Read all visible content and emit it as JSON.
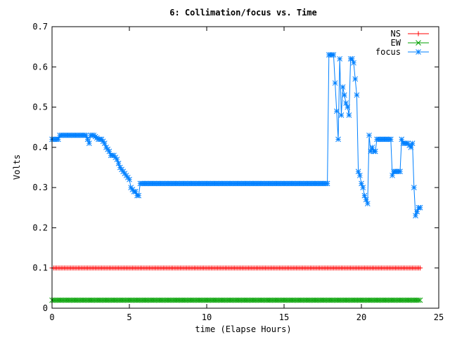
{
  "chart_data": {
    "type": "line",
    "title": "6: Collimation/focus vs. Time",
    "xlabel": "time (Elapse Hours)",
    "ylabel": "Volts",
    "xlim": [
      0,
      25
    ],
    "ylim": [
      0,
      0.7
    ],
    "xticks": [
      0,
      5,
      10,
      15,
      20,
      25
    ],
    "yticks": [
      0,
      0.1,
      0.2,
      0.3,
      0.4,
      0.5,
      0.6,
      0.7
    ],
    "xtick_labels": [
      "0",
      "5",
      "10",
      "15",
      "20",
      "25"
    ],
    "ytick_labels": [
      "0",
      "0.1",
      "0.2",
      "0.3",
      "0.4",
      "0.5",
      "0.6",
      "0.7"
    ],
    "legend_position": "top-right",
    "series": [
      {
        "name": "NS",
        "color": "#ff0000",
        "marker": "plus",
        "x": [
          0,
          23.8
        ],
        "values": [
          0.1,
          0.1
        ]
      },
      {
        "name": "EW",
        "color": "#00a000",
        "marker": "cross",
        "x": [
          0,
          23.8
        ],
        "values": [
          0.02,
          0.02
        ]
      },
      {
        "name": "focus",
        "color": "#0080ff",
        "marker": "star",
        "x": [
          0,
          0.4,
          0.5,
          1.0,
          2.0,
          2.2,
          2.4,
          2.5,
          2.7,
          3.0,
          3.2,
          3.4,
          3.5,
          3.7,
          3.8,
          4.0,
          4.2,
          4.4,
          4.6,
          4.8,
          5.0,
          5.1,
          5.3,
          5.4,
          5.5,
          5.6,
          5.7,
          6.0,
          10.0,
          15.0,
          17.8,
          17.9,
          18.1,
          18.2,
          18.4,
          18.5,
          18.6,
          18.7,
          18.8,
          18.9,
          19.0,
          19.1,
          19.2,
          19.3,
          19.4,
          19.5,
          19.6,
          19.7,
          19.8,
          19.9,
          20.0,
          20.1,
          20.2,
          20.3,
          20.4,
          20.5,
          20.6,
          20.7,
          20.8,
          20.9,
          21.0,
          21.5,
          21.9,
          22.0,
          22.1,
          22.2,
          22.5,
          22.6,
          22.7,
          23.0,
          23.2,
          23.3,
          23.4,
          23.5,
          23.6,
          23.7,
          23.8
        ],
        "values": [
          0.42,
          0.42,
          0.43,
          0.43,
          0.43,
          0.43,
          0.41,
          0.43,
          0.43,
          0.42,
          0.42,
          0.41,
          0.4,
          0.39,
          0.38,
          0.38,
          0.37,
          0.35,
          0.34,
          0.33,
          0.32,
          0.3,
          0.29,
          0.29,
          0.28,
          0.28,
          0.31,
          0.31,
          0.31,
          0.31,
          0.31,
          0.63,
          0.63,
          0.63,
          0.49,
          0.42,
          0.62,
          0.48,
          0.55,
          0.53,
          0.51,
          0.5,
          0.48,
          0.62,
          0.62,
          0.61,
          0.57,
          0.53,
          0.34,
          0.33,
          0.31,
          0.3,
          0.28,
          0.27,
          0.26,
          0.43,
          0.39,
          0.4,
          0.39,
          0.39,
          0.42,
          0.42,
          0.42,
          0.33,
          0.34,
          0.34,
          0.34,
          0.42,
          0.41,
          0.41,
          0.4,
          0.41,
          0.3,
          0.23,
          0.24,
          0.25,
          0.25
        ]
      }
    ]
  }
}
